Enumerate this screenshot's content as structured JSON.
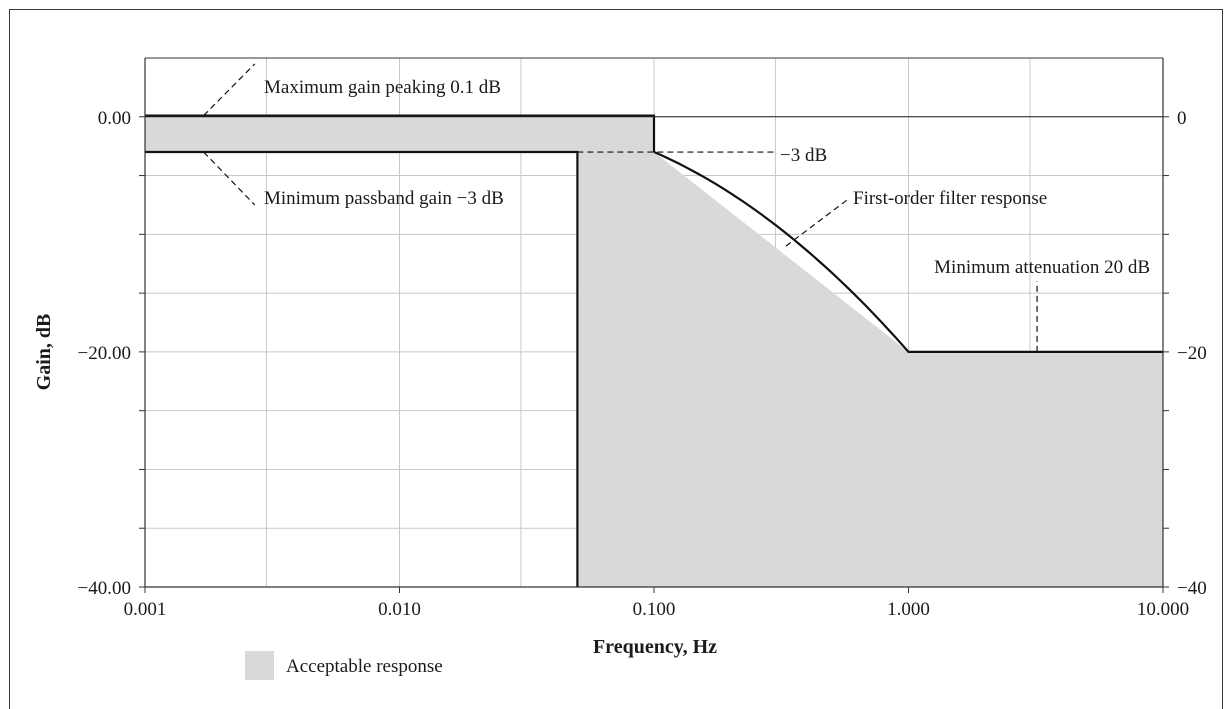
{
  "chart_data": {
    "type": "area",
    "x_scale": "log",
    "xlabel": "Frequency, Hz",
    "ylabel": "Gain, dB",
    "xlim": [
      0.001,
      10.0
    ],
    "ylim": [
      -40,
      5
    ],
    "grid": true,
    "x_ticks": [
      {
        "value": 0.001,
        "label": "0.001"
      },
      {
        "value": 0.01,
        "label": "0.010"
      },
      {
        "value": 0.1,
        "label": "0.100"
      },
      {
        "value": 1.0,
        "label": "1.000"
      },
      {
        "value": 10.0,
        "label": "10.000"
      }
    ],
    "y_ticks_left": [
      {
        "value": 0,
        "label": "0.00"
      },
      {
        "value": -20,
        "label": "−20.00"
      },
      {
        "value": -40,
        "label": "−40.00"
      }
    ],
    "y_ticks_right": [
      {
        "value": 0,
        "label": "0"
      },
      {
        "value": -20,
        "label": "−20"
      },
      {
        "value": -40,
        "label": "−40"
      }
    ],
    "acceptable_region": {
      "name": "Acceptable response",
      "color": "#d9d9d9",
      "polygon": [
        [
          0.001,
          0.1
        ],
        [
          0.1,
          0.1
        ],
        [
          0.1,
          -3
        ],
        [
          1.0,
          -20
        ],
        [
          10.0,
          -20
        ],
        [
          10.0,
          -40
        ],
        [
          0.05,
          -40
        ],
        [
          0.05,
          -3
        ],
        [
          0.001,
          -3
        ]
      ]
    },
    "boundary_lines": [
      {
        "name": "max-gain",
        "points": [
          [
            0.001,
            0.1
          ],
          [
            0.1,
            0.1
          ],
          [
            0.1,
            -3
          ]
        ]
      },
      {
        "name": "min-passband",
        "points": [
          [
            0.001,
            -3
          ],
          [
            0.05,
            -3
          ],
          [
            0.05,
            -40
          ]
        ]
      },
      {
        "name": "first-order-response",
        "points": [
          [
            0.1,
            -3
          ],
          [
            0.2,
            -6.5
          ],
          [
            0.4,
            -11.5
          ],
          [
            0.7,
            -16.5
          ],
          [
            1.0,
            -20
          ],
          [
            10.0,
            -20
          ]
        ]
      }
    ],
    "annotations": [
      {
        "id": "max_gain",
        "text": "Maximum gain peaking 0.1 dB",
        "x": 0.0018,
        "y": 0.1
      },
      {
        "id": "min_passband",
        "text": "Minimum passband gain −3 dB",
        "x": 0.0018,
        "y": -3
      },
      {
        "id": "minus3",
        "text": "−3 dB",
        "x": 0.05,
        "y": -3
      },
      {
        "id": "first_order",
        "text": "First-order filter response",
        "x": 0.35,
        "y": -11
      },
      {
        "id": "min_atten",
        "text": "Minimum attenuation 20 dB",
        "x": 3.2,
        "y": -20
      }
    ],
    "legend": {
      "position": "bottom-left",
      "label": "Acceptable response"
    }
  }
}
